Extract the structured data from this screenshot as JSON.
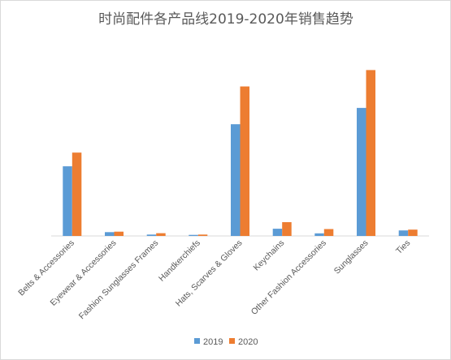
{
  "chart_data": {
    "type": "bar",
    "title": "时尚配件各产品线2019-2020年销售趋势",
    "xlabel": "",
    "ylabel": "",
    "ylim": [
      0,
      100
    ],
    "grid": false,
    "legend_position": "bottom",
    "categories": [
      "Belts & Accessories",
      "Eyewear & Accessories",
      "Fashion Sunglasses Frames",
      "Handkerchiefs",
      "Hats, Scarves & Gloves",
      "Keychains",
      "Other Fashion Accessories",
      "Sunglasses",
      "Ties"
    ],
    "series": [
      {
        "name": "2019",
        "color": "#5b9bd5",
        "values": [
          40.5,
          2.2,
          0.8,
          0.6,
          65,
          4.2,
          1.5,
          74.5,
          3.2
        ]
      },
      {
        "name": "2020",
        "color": "#ed7d31",
        "values": [
          48.5,
          2.5,
          1.6,
          0.8,
          87,
          8.0,
          4.0,
          96.5,
          3.7
        ]
      }
    ]
  }
}
